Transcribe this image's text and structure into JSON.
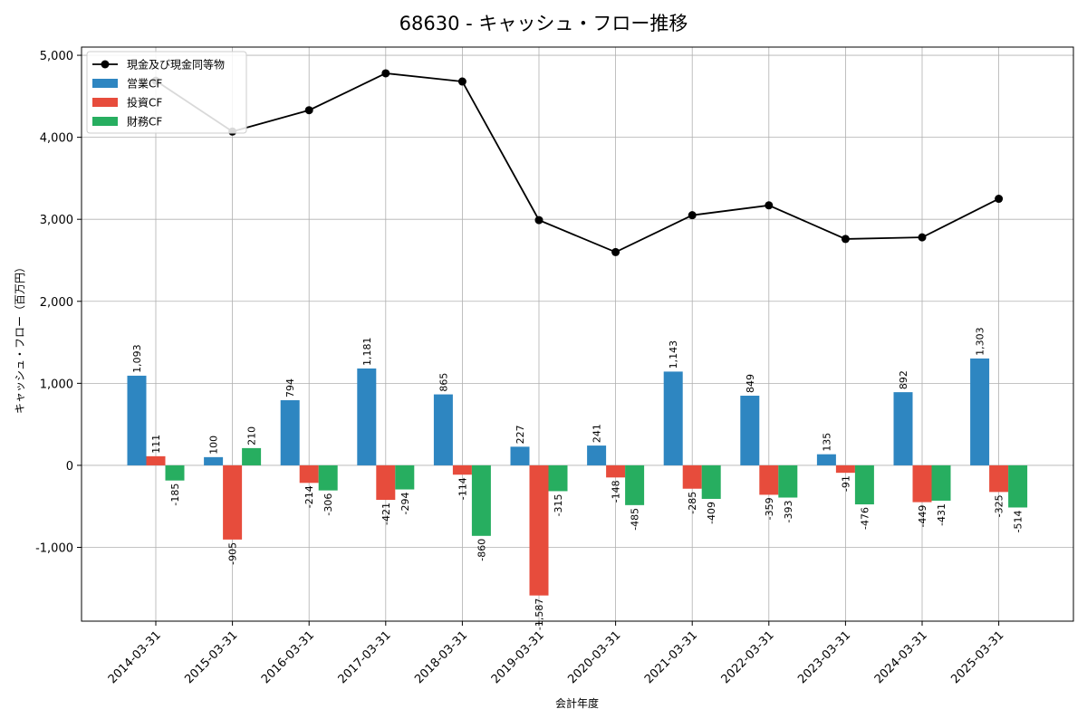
{
  "chart_data": {
    "type": "bar",
    "title": "68630 - キャッシュ・フロー推移",
    "xlabel": "会計年度",
    "ylabel": "キャッシュ・フロー（百万円）",
    "categories": [
      "2014-03-31",
      "2015-03-31",
      "2016-03-31",
      "2017-03-31",
      "2018-03-31",
      "2019-03-31",
      "2020-03-31",
      "2021-03-31",
      "2022-03-31",
      "2023-03-31",
      "2024-03-31",
      "2025-03-31"
    ],
    "ylim": [
      -1900,
      5100
    ],
    "yticks": [
      -1000,
      0,
      1000,
      2000,
      3000,
      4000,
      5000
    ],
    "ytick_labels": [
      "-1,000",
      "0",
      "1,000",
      "2,000",
      "3,000",
      "4,000",
      "5,000"
    ],
    "grid": true,
    "legend_position": "top-left",
    "series": [
      {
        "name": "営業CF",
        "kind": "bar",
        "color": "#2e86c1",
        "values": [
          1093,
          100,
          794,
          1181,
          865,
          227,
          241,
          1143,
          849,
          135,
          892,
          1303
        ],
        "labels": [
          "1,093",
          "100",
          "794",
          "1,181",
          "865",
          "227",
          "241",
          "1,143",
          "849",
          "135",
          "892",
          "1,303"
        ]
      },
      {
        "name": "投資CF",
        "kind": "bar",
        "color": "#e74c3c",
        "values": [
          111,
          -905,
          -214,
          -421,
          -114,
          -1587,
          -148,
          -285,
          -359,
          -91,
          -449,
          -325
        ],
        "labels": [
          "111",
          "-905",
          "-214",
          "-421",
          "-114",
          "-1,587",
          "-148",
          "-285",
          "-359",
          "-91",
          "-449",
          "-325"
        ]
      },
      {
        "name": "財務CF",
        "kind": "bar",
        "color": "#27ae60",
        "values": [
          -185,
          210,
          -306,
          -294,
          -860,
          -315,
          -485,
          -409,
          -393,
          -476,
          -431,
          -514
        ],
        "labels": [
          "-185",
          "210",
          "-306",
          "-294",
          "-860",
          "-315",
          "-485",
          "-409",
          "-393",
          "-476",
          "-431",
          "-514"
        ]
      },
      {
        "name": "現金及び現金同等物",
        "kind": "line",
        "color": "#000000",
        "values": [
          4690,
          4070,
          4330,
          4780,
          4680,
          2990,
          2600,
          3050,
          3170,
          2760,
          2780,
          3250
        ]
      }
    ]
  }
}
